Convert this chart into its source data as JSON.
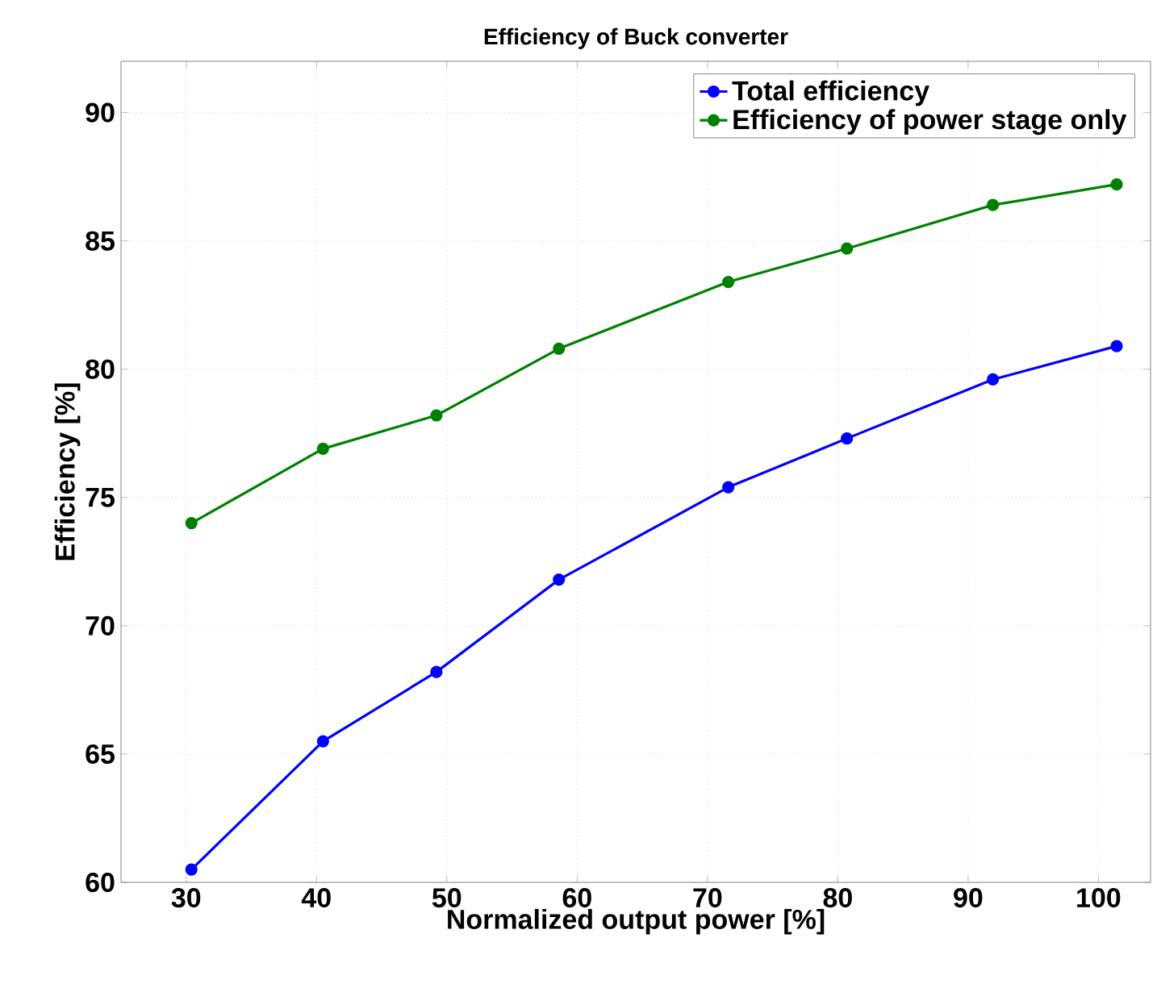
{
  "chart_data": {
    "type": "line",
    "title": "Efficiency of Buck converter",
    "xlabel": "Normalized  output power [%]",
    "ylabel": "Efficiency [%]",
    "xlim": [
      25,
      104
    ],
    "ylim": [
      60,
      92
    ],
    "xticks": [
      30,
      40,
      50,
      60,
      70,
      80,
      90,
      100
    ],
    "yticks": [
      60,
      65,
      70,
      75,
      80,
      85,
      90
    ],
    "grid": true,
    "legend": "top right",
    "marker": "circle",
    "series": [
      {
        "name": "Total efficiency",
        "color": "#0000ff",
        "x": [
          30.4,
          40.5,
          49.2,
          58.6,
          71.6,
          80.7,
          91.9,
          101.4
        ],
        "values": [
          60.5,
          65.5,
          68.2,
          71.8,
          75.4,
          77.3,
          79.6,
          80.9
        ]
      },
      {
        "name": "Efficiency of power stage only",
        "color": "#008000",
        "x": [
          30.4,
          40.5,
          49.2,
          58.6,
          71.6,
          80.7,
          91.9,
          101.4
        ],
        "values": [
          74.0,
          76.9,
          78.2,
          80.8,
          83.4,
          84.7,
          86.4,
          87.2
        ]
      }
    ]
  }
}
